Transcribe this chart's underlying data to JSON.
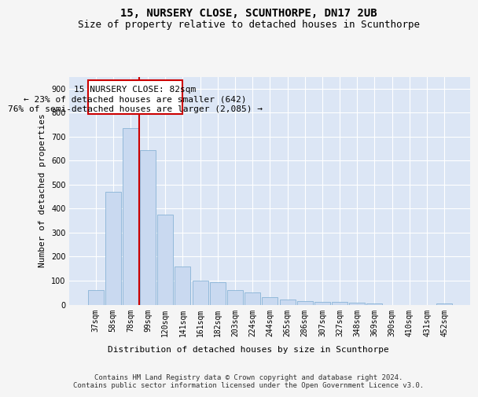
{
  "title": "15, NURSERY CLOSE, SCUNTHORPE, DN17 2UB",
  "subtitle": "Size of property relative to detached houses in Scunthorpe",
  "xlabel": "Distribution of detached houses by size in Scunthorpe",
  "ylabel": "Number of detached properties",
  "footer_line1": "Contains HM Land Registry data © Crown copyright and database right 2024.",
  "footer_line2": "Contains public sector information licensed under the Open Government Licence v3.0.",
  "categories": [
    "37sqm",
    "58sqm",
    "78sqm",
    "99sqm",
    "120sqm",
    "141sqm",
    "161sqm",
    "182sqm",
    "203sqm",
    "224sqm",
    "244sqm",
    "265sqm",
    "286sqm",
    "307sqm",
    "327sqm",
    "348sqm",
    "369sqm",
    "390sqm",
    "410sqm",
    "431sqm",
    "452sqm"
  ],
  "values": [
    60,
    470,
    735,
    645,
    375,
    160,
    100,
    95,
    60,
    50,
    30,
    20,
    15,
    13,
    10,
    8,
    5,
    0,
    0,
    0,
    5
  ],
  "bar_color": "#c9d9f0",
  "bar_edge_color": "#7aaad0",
  "property_line_label": "15 NURSERY CLOSE: 82sqm",
  "annotation_line1": "← 23% of detached houses are smaller (642)",
  "annotation_line2": "76% of semi-detached houses are larger (2,085) →",
  "annotation_box_color": "#ffffff",
  "annotation_box_edge_color": "#cc0000",
  "vline_color": "#cc0000",
  "ylim": [
    0,
    950
  ],
  "yticks": [
    0,
    100,
    200,
    300,
    400,
    500,
    600,
    700,
    800,
    900
  ],
  "plot_bg_color": "#dce6f5",
  "fig_bg_color": "#f5f5f5",
  "grid_color": "#ffffff",
  "title_fontsize": 10,
  "subtitle_fontsize": 9,
  "axis_label_fontsize": 8,
  "tick_fontsize": 7,
  "annotation_fontsize": 8,
  "footer_fontsize": 6.5,
  "vline_x": 2.5
}
